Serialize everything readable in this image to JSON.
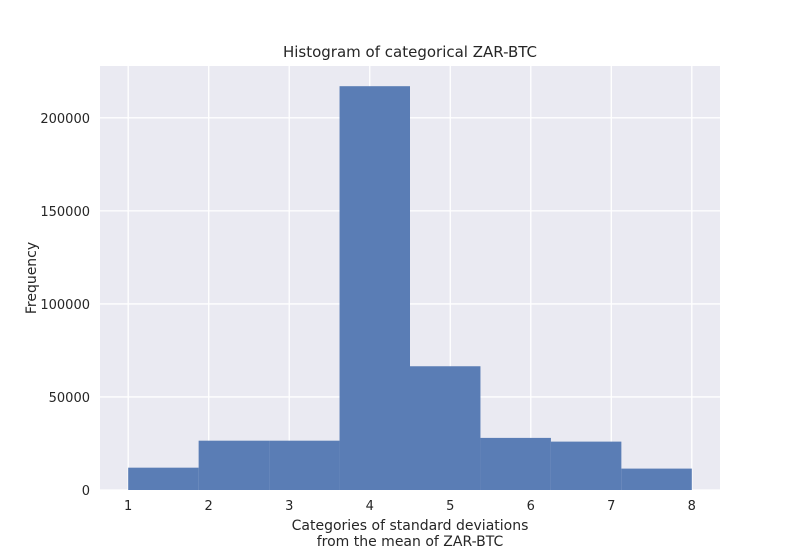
{
  "chart_data": {
    "type": "bar",
    "title": "Histogram of categorical ZAR-BTC",
    "xlabel_lines": [
      "Categories of standard deviations",
      "from the mean of ZAR-BTC"
    ],
    "ylabel": "Frequency",
    "bins": [
      {
        "x0": 1.0,
        "x1": 1.875,
        "value": 12000
      },
      {
        "x0": 1.875,
        "x1": 2.75,
        "value": 26500
      },
      {
        "x0": 2.75,
        "x1": 3.625,
        "value": 26500
      },
      {
        "x0": 3.625,
        "x1": 4.5,
        "value": 217000
      },
      {
        "x0": 4.5,
        "x1": 5.375,
        "value": 66500
      },
      {
        "x0": 5.375,
        "x1": 6.25,
        "value": 28000
      },
      {
        "x0": 6.25,
        "x1": 7.125,
        "value": 26000
      },
      {
        "x0": 7.125,
        "x1": 8.0,
        "value": 11500
      }
    ],
    "xlim": [
      0.65,
      8.35
    ],
    "ylim": [
      0,
      227850
    ],
    "x_ticks": [
      1,
      2,
      3,
      4,
      5,
      6,
      7,
      8
    ],
    "y_ticks": [
      0,
      50000,
      100000,
      150000,
      200000
    ],
    "grid": true,
    "legend": "none",
    "colors": {
      "bar": "#5a7db5",
      "plot_bg": "#eaeaf2",
      "grid": "#ffffff",
      "text": "#262626"
    }
  }
}
